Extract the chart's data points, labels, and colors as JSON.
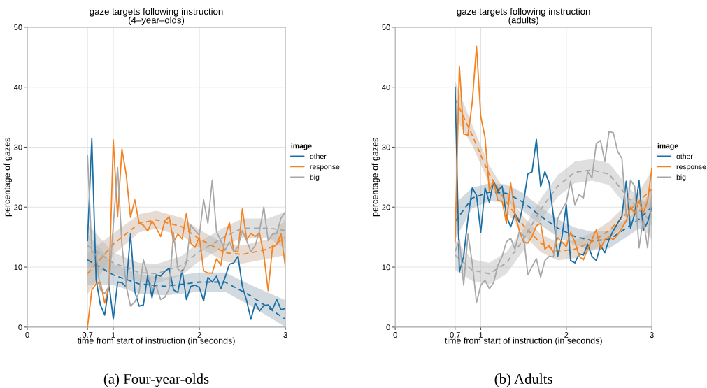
{
  "chart_data": [
    {
      "type": "line",
      "title": "gaze targets following instruction\n(4–year–olds)",
      "xlabel": "time from start of instruction (in seconds)",
      "ylabel": "percentage of gazes",
      "legend_title": "image",
      "legend": "right",
      "grid": true,
      "line_style": "solid",
      "marker": "none",
      "xlim": [
        0,
        3
      ],
      "xticks": [
        0,
        0.7,
        1,
        2,
        3
      ],
      "ylim": [
        0,
        50
      ],
      "yticks": [
        0,
        10,
        20,
        30,
        40,
        50
      ],
      "annotations": [
        "(a) Four-year-olds"
      ],
      "x": [
        0.7,
        0.75,
        0.8,
        0.85,
        0.9,
        0.95,
        1.0,
        1.05,
        1.1,
        1.15,
        1.2,
        1.25,
        1.3,
        1.35,
        1.4,
        1.45,
        1.5,
        1.55,
        1.6,
        1.65,
        1.7,
        1.75,
        1.8,
        1.85,
        1.9,
        1.95,
        2.0,
        2.05,
        2.1,
        2.15,
        2.2,
        2.25,
        2.3,
        2.35,
        2.4,
        2.45,
        2.5,
        2.55,
        2.6,
        2.65,
        2.7,
        2.75,
        2.8,
        2.85,
        2.9,
        2.95,
        3.0
      ],
      "series": [
        {
          "name": "other",
          "color": "#1a6fa6",
          "values": [
            14.4,
            31.4,
            7.9,
            3.7,
            2.0,
            7.2,
            1.3,
            7.5,
            7.4,
            6.7,
            15.6,
            6.0,
            3.5,
            3.7,
            8.7,
            4.9,
            8.7,
            8.5,
            9.3,
            9.8,
            6.2,
            5.8,
            9.5,
            4.6,
            6.8,
            7.0,
            6.6,
            4.4,
            8.3,
            7.5,
            8.5,
            6.4,
            8.3,
            10.5,
            10.7,
            11.8,
            6.8,
            4.4,
            1.3,
            4.0,
            2.7,
            3.6,
            3.7,
            2.9,
            4.6,
            2.9,
            3.1
          ]
        },
        {
          "name": "response",
          "color": "#f5821f",
          "values": [
            0,
            6.2,
            7.2,
            7.5,
            4.0,
            6.8,
            31.2,
            18.4,
            29.7,
            25.4,
            18.3,
            21.2,
            17.3,
            17.0,
            16.0,
            17.7,
            16.5,
            15.1,
            17.7,
            18.4,
            14.2,
            15.5,
            14.7,
            19.0,
            14.0,
            13.3,
            15.0,
            9.4,
            9.0,
            9.0,
            11.4,
            10.3,
            15.0,
            17.4,
            12.6,
            12.6,
            19.7,
            14.6,
            15.6,
            15.1,
            15.7,
            12.0,
            6.1,
            13.2,
            13.8,
            15.5,
            10.1
          ]
        },
        {
          "name": "big",
          "color": "#a8a8a8",
          "values": [
            28.6,
            12.6,
            12.0,
            6.2,
            5.6,
            6.8,
            16.9,
            26.6,
            13.8,
            6.8,
            3.5,
            4.2,
            5.8,
            11.2,
            8.7,
            6.4,
            6.8,
            4.6,
            5.0,
            6.4,
            15.7,
            9.7,
            9.1,
            10.7,
            17.0,
            16.1,
            15.3,
            21.2,
            17.3,
            24.5,
            15.9,
            14.4,
            12.8,
            14.2,
            12.6,
            13.4,
            16.1,
            14.4,
            12.6,
            13.6,
            16.1,
            20.0,
            14.4,
            15.5,
            15.6,
            18.2,
            19.2
          ]
        },
        {
          "color": "#1a6fa6",
          "line_style": "dashed",
          "x": [
            0.7,
            1.0,
            1.3,
            1.6,
            2.0,
            2.3,
            2.6,
            3.0
          ],
          "values": [
            11.2,
            8.7,
            7.2,
            6.8,
            7.5,
            7.5,
            5.2,
            1.3
          ],
          "lower": [
            7.0,
            7.0,
            5.6,
            5.3,
            5.9,
            5.9,
            3.5,
            0
          ],
          "upper": [
            15.5,
            10.5,
            8.8,
            8.3,
            9.1,
            9.1,
            7.0,
            4.5
          ]
        },
        {
          "color": "#f5821f",
          "line_style": "dashed",
          "x": [
            0.7,
            1.0,
            1.3,
            1.5,
            1.8,
            2.0,
            2.3,
            2.5,
            2.8,
            3.0
          ],
          "values": [
            8.9,
            13.8,
            17.3,
            17.9,
            16.7,
            14.7,
            12.4,
            12.1,
            13.0,
            15.0
          ],
          "lower": [
            5.5,
            12.0,
            15.8,
            16.4,
            15.2,
            13.2,
            10.9,
            10.6,
            11.4,
            12.0
          ],
          "upper": [
            12.3,
            15.6,
            18.8,
            19.4,
            18.2,
            16.2,
            13.9,
            13.6,
            14.6,
            18.0
          ]
        },
        {
          "color": "#a8a8a8",
          "line_style": "dashed",
          "x": [
            0.7,
            1.0,
            1.3,
            1.5,
            1.8,
            2.0,
            2.3,
            2.5,
            2.8,
            3.0
          ],
          "values": [
            13.6,
            10.7,
            9.1,
            8.9,
            10.3,
            12.6,
            15.1,
            16.5,
            16.5,
            16.1
          ],
          "lower": [
            10.0,
            9.0,
            7.5,
            7.3,
            8.7,
            11.0,
            13.5,
            14.9,
            14.9,
            13.0
          ],
          "upper": [
            17.2,
            12.4,
            10.7,
            10.5,
            11.9,
            14.2,
            16.7,
            18.1,
            18.1,
            19.2
          ]
        }
      ]
    },
    {
      "type": "line",
      "title": "gaze targets following instruction\n(adults)",
      "xlabel": "time from start of instruction (in seconds)",
      "ylabel": "percentage of gazes",
      "legend_title": "image",
      "legend": "right",
      "grid": true,
      "line_style": "solid",
      "marker": "none",
      "xlim": [
        0,
        3
      ],
      "xticks": [
        0,
        0.7,
        1,
        2,
        3
      ],
      "ylim": [
        0,
        50
      ],
      "yticks": [
        0,
        10,
        20,
        30,
        40,
        50
      ],
      "annotations": [
        "(b) Adults"
      ],
      "x": [
        0.7,
        0.75,
        0.8,
        0.85,
        0.9,
        0.95,
        1.0,
        1.05,
        1.1,
        1.15,
        1.2,
        1.25,
        1.3,
        1.35,
        1.4,
        1.45,
        1.5,
        1.55,
        1.6,
        1.65,
        1.7,
        1.75,
        1.8,
        1.85,
        1.9,
        1.95,
        2.0,
        2.05,
        2.1,
        2.15,
        2.2,
        2.25,
        2.3,
        2.35,
        2.4,
        2.45,
        2.5,
        2.55,
        2.6,
        2.65,
        2.7,
        2.75,
        2.8,
        2.85,
        2.9,
        2.95,
        3.0
      ],
      "series": [
        {
          "name": "other",
          "color": "#1a6fa6",
          "values": [
            40.0,
            9.2,
            11.8,
            18.1,
            23.2,
            22.0,
            15.8,
            23.2,
            20.8,
            24.3,
            22.7,
            23.5,
            18.5,
            16.7,
            18.9,
            17.5,
            20.8,
            25.5,
            25.9,
            31.3,
            23.4,
            25.9,
            24.0,
            18.5,
            11.8,
            15.1,
            20.4,
            11.1,
            10.7,
            12.2,
            12.0,
            13.8,
            11.8,
            11.1,
            13.6,
            12.4,
            14.6,
            16.1,
            17.3,
            18.5,
            24.3,
            16.5,
            18.9,
            24.4,
            16.1,
            17.5,
            20.0
          ]
        },
        {
          "name": "response",
          "color": "#f5821f",
          "values": [
            14.2,
            43.5,
            32.2,
            32.0,
            37.4,
            46.8,
            35.1,
            31.6,
            22.7,
            24.3,
            21.1,
            21.0,
            17.3,
            24.0,
            18.9,
            16.1,
            14.2,
            14.0,
            15.1,
            16.9,
            17.3,
            13.0,
            13.6,
            12.4,
            14.9,
            14.2,
            13.4,
            15.8,
            14.2,
            11.8,
            11.2,
            13.0,
            14.6,
            16.2,
            13.0,
            14.6,
            15.0,
            14.6,
            15.4,
            16.5,
            17.7,
            20.0,
            19.0,
            21.0,
            19.0,
            21.0,
            26.5
          ]
        },
        {
          "name": "big",
          "color": "#a8a8a8",
          "values": [
            12.6,
            14.6,
            7.0,
            15.5,
            10.7,
            4.1,
            7.0,
            7.8,
            6.4,
            7.4,
            10.3,
            11.8,
            14.2,
            14.8,
            13.0,
            15.9,
            15.3,
            8.7,
            10.1,
            11.4,
            8.3,
            11.1,
            11.8,
            11.7,
            18.1,
            19.6,
            20.8,
            24.3,
            20.4,
            22.1,
            21.5,
            25.9,
            24.9,
            30.6,
            31.1,
            27.6,
            32.6,
            32.4,
            29.3,
            28.1,
            18.5,
            24.5,
            23.5,
            13.2,
            18.0,
            13.2,
            22.0
          ]
        },
        {
          "color": "#1a6fa6",
          "line_style": "dashed",
          "x": [
            0.7,
            0.9,
            1.1,
            1.3,
            1.5,
            1.7,
            1.9,
            2.1,
            2.3,
            2.5,
            2.7,
            2.85,
            3.0
          ],
          "values": [
            17.6,
            21.5,
            22.5,
            22.3,
            20.8,
            18.5,
            16.5,
            15.1,
            14.4,
            14.6,
            16.5,
            18.0,
            20.0
          ],
          "lower": [
            14.6,
            19.8,
            21.0,
            20.8,
            19.3,
            17.0,
            15.0,
            13.6,
            12.9,
            13.1,
            15.0,
            16.4,
            17.0
          ],
          "upper": [
            20.6,
            23.2,
            24.0,
            23.8,
            22.3,
            20.0,
            18.0,
            16.6,
            15.9,
            16.1,
            18.0,
            19.6,
            23.0
          ]
        },
        {
          "color": "#f5821f",
          "line_style": "dashed",
          "x": [
            0.7,
            0.9,
            1.1,
            1.3,
            1.5,
            1.7,
            1.9,
            2.1,
            2.3,
            2.5,
            2.7,
            2.85,
            3.0
          ],
          "values": [
            38.0,
            32.0,
            25.4,
            20.8,
            16.9,
            14.0,
            12.6,
            13.0,
            14.2,
            16.1,
            18.9,
            21.0,
            23.0
          ],
          "lower": [
            35.0,
            30.3,
            23.9,
            19.3,
            15.4,
            12.5,
            11.1,
            11.5,
            12.7,
            14.6,
            17.4,
            19.4,
            20.0
          ],
          "upper": [
            41.0,
            33.7,
            26.9,
            22.3,
            18.4,
            15.5,
            14.1,
            14.5,
            15.7,
            17.6,
            20.4,
            22.6,
            26.0
          ]
        },
        {
          "color": "#a8a8a8",
          "line_style": "dashed",
          "x": [
            0.7,
            0.9,
            1.1,
            1.3,
            1.5,
            1.7,
            1.9,
            2.1,
            2.3,
            2.5,
            2.7,
            2.85,
            3.0
          ],
          "values": [
            12.0,
            9.5,
            8.9,
            10.7,
            14.6,
            19.6,
            23.5,
            25.8,
            26.2,
            25.5,
            22.0,
            19.5,
            17.5
          ],
          "lower": [
            9.5,
            7.7,
            7.1,
            8.9,
            12.8,
            17.8,
            21.7,
            24.0,
            24.4,
            23.7,
            20.2,
            17.5,
            14.5
          ],
          "upper": [
            14.5,
            11.3,
            10.7,
            12.5,
            16.4,
            21.4,
            25.3,
            27.6,
            28.0,
            27.3,
            23.8,
            21.5,
            20.5
          ]
        }
      ]
    }
  ]
}
